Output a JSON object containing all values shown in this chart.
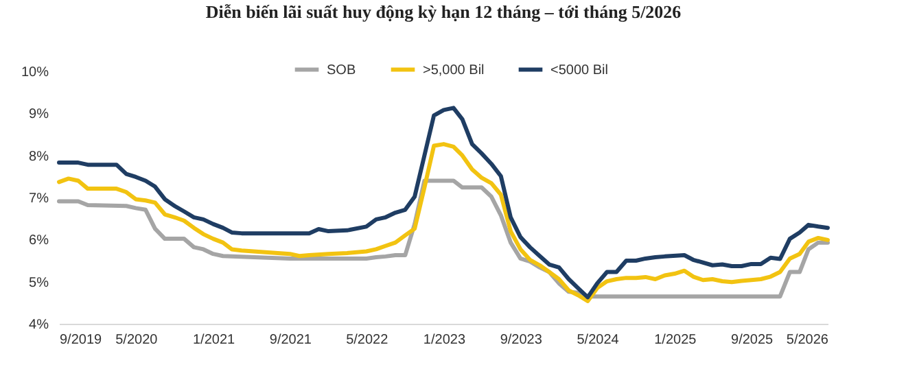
{
  "chart_data": {
    "type": "line",
    "title": "Diễn biến lãi suất huy động kỳ hạn 12 tháng – tới tháng 5/2026",
    "xlim": [
      "2019-09",
      "2026-05"
    ],
    "xticks": [
      {
        "value": "2019-09",
        "label": "9/2019"
      },
      {
        "value": "2020-05",
        "label": "5/2020"
      },
      {
        "value": "2021-01",
        "label": "1/2021"
      },
      {
        "value": "2021-09",
        "label": "9/2021"
      },
      {
        "value": "2022-05",
        "label": "5/2022"
      },
      {
        "value": "2023-01",
        "label": "1/2023"
      },
      {
        "value": "2023-09",
        "label": "9/2023"
      },
      {
        "value": "2024-05",
        "label": "5/2024"
      },
      {
        "value": "2025-01",
        "label": "1/2025"
      },
      {
        "value": "2025-09",
        "label": "9/2025"
      },
      {
        "value": "2026-05",
        "label": "5/2026"
      }
    ],
    "ylim": [
      4,
      10
    ],
    "yticks": [
      {
        "value": 4,
        "label": "4%"
      },
      {
        "value": 5,
        "label": "5%"
      },
      {
        "value": 6,
        "label": "6%"
      },
      {
        "value": 7,
        "label": "7%"
      },
      {
        "value": 8,
        "label": "8%"
      },
      {
        "value": 9,
        "label": "9%"
      },
      {
        "value": 10,
        "label": "10%"
      }
    ],
    "grid": false,
    "legend": "top",
    "marker": "none",
    "line_style": "solid",
    "series": [
      {
        "name": "SOB",
        "color": "#a5a5a5",
        "x": [
          "2019-09",
          "2019-11",
          "2019-12",
          "2020-04",
          "2020-05",
          "2020-06",
          "2020-07",
          "2020-08",
          "2020-10",
          "2020-11",
          "2020-12",
          "2021-01",
          "2021-02",
          "2021-09",
          "2022-05",
          "2022-06",
          "2022-07",
          "2022-08",
          "2022-09",
          "2022-10",
          "2022-11",
          "2023-02",
          "2023-03",
          "2023-05",
          "2023-06",
          "2023-07",
          "2023-08",
          "2023-09",
          "2023-10",
          "2023-11",
          "2023-12",
          "2024-01",
          "2024-02",
          "2024-03",
          "2024-04",
          "2025-12",
          "2026-01",
          "2026-02",
          "2026-03",
          "2026-04",
          "2026-05"
        ],
        "values": [
          6.91,
          6.91,
          6.82,
          6.8,
          6.75,
          6.71,
          6.26,
          6.02,
          6.02,
          5.82,
          5.77,
          5.66,
          5.61,
          5.55,
          5.55,
          5.58,
          5.6,
          5.63,
          5.63,
          6.37,
          7.4,
          7.4,
          7.24,
          7.24,
          7.02,
          6.58,
          5.93,
          5.55,
          5.48,
          5.34,
          5.23,
          4.96,
          4.76,
          4.74,
          4.65,
          4.65,
          5.23,
          5.23,
          5.77,
          5.93,
          5.93
        ]
      },
      {
        "name": ">5,000 Bil",
        "color": "#f2c311",
        "x": [
          "2019-09",
          "2019-10",
          "2019-11",
          "2019-12",
          "2020-03",
          "2020-04",
          "2020-05",
          "2020-06",
          "2020-07",
          "2020-08",
          "2020-09",
          "2020-10",
          "2020-11",
          "2020-12",
          "2021-01",
          "2021-02",
          "2021-03",
          "2021-04",
          "2021-09",
          "2021-10",
          "2021-11",
          "2022-01",
          "2022-03",
          "2022-05",
          "2022-06",
          "2022-07",
          "2022-08",
          "2022-09",
          "2022-10",
          "2022-11",
          "2022-12",
          "2023-01",
          "2023-02",
          "2023-03",
          "2023-04",
          "2023-05",
          "2023-06",
          "2023-07",
          "2023-08",
          "2023-09",
          "2023-10",
          "2023-11",
          "2023-12",
          "2024-01",
          "2024-02",
          "2024-03",
          "2024-04",
          "2024-05",
          "2024-06",
          "2024-07",
          "2024-08",
          "2024-09",
          "2024-10",
          "2024-11",
          "2024-12",
          "2025-01",
          "2025-02",
          "2025-03",
          "2025-04",
          "2025-05",
          "2025-06",
          "2025-07",
          "2025-08",
          "2025-09",
          "2025-10",
          "2025-11",
          "2025-12",
          "2026-01",
          "2026-02",
          "2026-03",
          "2026-04",
          "2026-05"
        ],
        "values": [
          7.37,
          7.45,
          7.4,
          7.21,
          7.21,
          7.13,
          6.96,
          6.93,
          6.88,
          6.6,
          6.53,
          6.45,
          6.28,
          6.13,
          6.02,
          5.93,
          5.77,
          5.74,
          5.66,
          5.61,
          5.63,
          5.66,
          5.68,
          5.72,
          5.77,
          5.85,
          5.93,
          6.1,
          6.26,
          7.24,
          8.23,
          8.27,
          8.21,
          8.0,
          7.67,
          7.47,
          7.34,
          7.07,
          6.2,
          5.77,
          5.52,
          5.39,
          5.23,
          5.06,
          4.79,
          4.68,
          4.54,
          4.85,
          5.01,
          5.06,
          5.09,
          5.09,
          5.11,
          5.06,
          5.15,
          5.19,
          5.26,
          5.12,
          5.04,
          5.06,
          5.01,
          4.99,
          5.02,
          5.04,
          5.06,
          5.12,
          5.23,
          5.55,
          5.66,
          5.95,
          6.04,
          5.99
        ]
      },
      {
        "name": "<5000 Bil",
        "color": "#1f3d63",
        "x": [
          "2019-09",
          "2019-11",
          "2019-12",
          "2020-03",
          "2020-04",
          "2020-05",
          "2020-06",
          "2020-07",
          "2020-08",
          "2020-09",
          "2020-10",
          "2020-11",
          "2020-12",
          "2021-01",
          "2021-02",
          "2021-03",
          "2021-04",
          "2021-11",
          "2021-12",
          "2022-01",
          "2022-03",
          "2022-05",
          "2022-06",
          "2022-07",
          "2022-08",
          "2022-09",
          "2022-10",
          "2022-11",
          "2022-12",
          "2023-01",
          "2023-02",
          "2023-03",
          "2023-04",
          "2023-05",
          "2023-06",
          "2023-07",
          "2023-08",
          "2023-09",
          "2023-10",
          "2023-11",
          "2023-12",
          "2024-01",
          "2024-02",
          "2024-03",
          "2024-04",
          "2024-05",
          "2024-06",
          "2024-07",
          "2024-08",
          "2024-09",
          "2024-10",
          "2024-11",
          "2024-12",
          "2025-02",
          "2025-03",
          "2025-05",
          "2025-06",
          "2025-07",
          "2025-08",
          "2025-09",
          "2025-10",
          "2025-11",
          "2025-12",
          "2026-01",
          "2026-02",
          "2026-03",
          "2026-04",
          "2026-05"
        ],
        "values": [
          7.83,
          7.83,
          7.78,
          7.78,
          7.56,
          7.49,
          7.4,
          7.26,
          6.96,
          6.8,
          6.67,
          6.53,
          6.48,
          6.37,
          6.28,
          6.17,
          6.15,
          6.15,
          6.25,
          6.2,
          6.22,
          6.31,
          6.48,
          6.53,
          6.64,
          6.71,
          7.02,
          8.0,
          8.95,
          9.08,
          9.13,
          8.86,
          8.27,
          8.05,
          7.8,
          7.51,
          6.53,
          6.06,
          5.82,
          5.61,
          5.41,
          5.34,
          5.06,
          4.85,
          4.63,
          4.96,
          5.23,
          5.23,
          5.5,
          5.5,
          5.55,
          5.58,
          5.6,
          5.63,
          5.52,
          5.39,
          5.41,
          5.37,
          5.37,
          5.42,
          5.42,
          5.57,
          5.54,
          6.02,
          6.17,
          6.35,
          6.31,
          6.28
        ]
      }
    ]
  }
}
